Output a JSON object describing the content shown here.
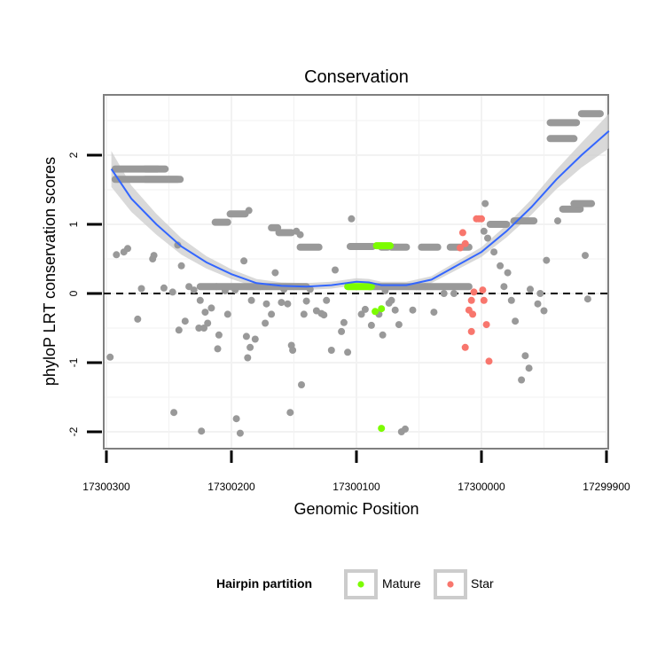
{
  "chart_data": {
    "type": "scatter",
    "title": "Conservation",
    "xlabel": "Genomic Position",
    "ylabel": "phyloP LRT conservation scores",
    "x_reversed": true,
    "xlim": [
      17300300,
      17299900
    ],
    "ylim": [
      -2.2,
      2.8
    ],
    "x_ticks": [
      17300300,
      17300200,
      17300100,
      17300000,
      17299900
    ],
    "x_tick_labels": [
      "17300300",
      "17300200",
      "17300100",
      "17300000",
      "17299900"
    ],
    "y_ticks": [
      2,
      1,
      0,
      -1,
      -2
    ],
    "y_tick_labels": [
      "2",
      "1",
      "0",
      "-1",
      "-2"
    ],
    "reference_line": {
      "y": 0,
      "style": "dashed"
    },
    "legend": {
      "title": "Hairpin partition",
      "placement": "bottom",
      "entries": [
        {
          "label": "Mature",
          "color": "#7cfc00"
        },
        {
          "label": "Star",
          "color": "#f8766d"
        }
      ]
    },
    "colors": {
      "background": "#ffffff",
      "other": "#999999",
      "smooth": "#3366ff",
      "band": "#cccccc",
      "grid": "#f2f2f2"
    },
    "series": [
      {
        "name": "Other",
        "color": "#999999",
        "segments": [
          [
            17300293,
            17300253,
            1.8
          ],
          [
            17300293,
            17300243,
            1.65
          ],
          [
            17300269,
            17300259,
            1.8
          ],
          [
            17300269,
            17300241,
            1.65
          ],
          [
            17300213,
            17300203,
            1.03
          ],
          [
            17300201,
            17300189,
            1.15
          ],
          [
            17300168,
            17300163,
            0.95
          ],
          [
            17300162,
            17300152,
            0.88
          ],
          [
            17300145,
            17300130,
            0.67
          ],
          [
            17300105,
            17300087,
            0.68
          ],
          [
            17300080,
            17300075,
            0.67
          ],
          [
            17300072,
            17300060,
            0.67
          ],
          [
            17300048,
            17300035,
            0.67
          ],
          [
            17300025,
            17300010,
            0.67
          ],
          [
            17299993,
            17299980,
            1.0
          ],
          [
            17299974,
            17299958,
            1.05
          ],
          [
            17299945,
            17299924,
            2.47
          ],
          [
            17299945,
            17299926,
            2.24
          ],
          [
            17299920,
            17299905,
            2.6
          ],
          [
            17299935,
            17299921,
            1.22
          ],
          [
            17299926,
            17299912,
            1.3
          ],
          [
            17300225,
            17300140,
            0.1
          ],
          [
            17300090,
            17300010,
            0.1
          ]
        ],
        "points": [
          [
            17300297,
            -0.92
          ],
          [
            17300292,
            0.56
          ],
          [
            17300286,
            0.6
          ],
          [
            17300283,
            0.65
          ],
          [
            17300275,
            -0.37
          ],
          [
            17300272,
            0.07
          ],
          [
            17300263,
            0.5
          ],
          [
            17300262,
            0.55
          ],
          [
            17300254,
            0.08
          ],
          [
            17300247,
            0.02
          ],
          [
            17300246,
            -1.72
          ],
          [
            17300243,
            0.7
          ],
          [
            17300242,
            -0.53
          ],
          [
            17300240,
            0.4
          ],
          [
            17300237,
            -0.4
          ],
          [
            17300234,
            0.1
          ],
          [
            17300230,
            0.05
          ],
          [
            17300226,
            -0.5
          ],
          [
            17300225,
            -0.1
          ],
          [
            17300224,
            -1.99
          ],
          [
            17300222,
            -0.5
          ],
          [
            17300221,
            -0.27
          ],
          [
            17300219,
            -0.43
          ],
          [
            17300216,
            -0.21
          ],
          [
            17300212,
            0.1
          ],
          [
            17300211,
            -0.8
          ],
          [
            17300210,
            -0.6
          ],
          [
            17300205,
            0.04
          ],
          [
            17300203,
            -0.3
          ],
          [
            17300197,
            0.05
          ],
          [
            17300196,
            -1.81
          ],
          [
            17300193,
            -2.02
          ],
          [
            17300190,
            0.47
          ],
          [
            17300188,
            -0.62
          ],
          [
            17300187,
            -0.93
          ],
          [
            17300186,
            1.2
          ],
          [
            17300185,
            -0.78
          ],
          [
            17300184,
            -0.1
          ],
          [
            17300181,
            -0.66
          ],
          [
            17300177,
            0.1
          ],
          [
            17300173,
            -0.43
          ],
          [
            17300172,
            -0.15
          ],
          [
            17300168,
            -0.3
          ],
          [
            17300165,
            0.3
          ],
          [
            17300160,
            -0.13
          ],
          [
            17300158,
            0.06
          ],
          [
            17300155,
            -0.15
          ],
          [
            17300153,
            -1.72
          ],
          [
            17300152,
            -0.75
          ],
          [
            17300151,
            -0.82
          ],
          [
            17300148,
            0.9
          ],
          [
            17300145,
            0.85
          ],
          [
            17300144,
            -1.32
          ],
          [
            17300142,
            -0.3
          ],
          [
            17300140,
            -0.11
          ],
          [
            17300137,
            0.06
          ],
          [
            17300132,
            -0.25
          ],
          [
            17300128,
            -0.29
          ],
          [
            17300126,
            -0.31
          ],
          [
            17300124,
            -0.1
          ],
          [
            17300120,
            -0.82
          ],
          [
            17300117,
            0.34
          ],
          [
            17300112,
            -0.55
          ],
          [
            17300110,
            -0.42
          ],
          [
            17300107,
            -0.85
          ],
          [
            17300104,
            1.08
          ],
          [
            17300096,
            -0.3
          ],
          [
            17300093,
            -0.23
          ],
          [
            17300088,
            -0.46
          ],
          [
            17300082,
            -0.3
          ],
          [
            17300079,
            -0.6
          ],
          [
            17300077,
            0.04
          ],
          [
            17300074,
            -0.14
          ],
          [
            17300072,
            -0.1
          ],
          [
            17300069,
            -0.24
          ],
          [
            17300066,
            -0.45
          ],
          [
            17300064,
            -2.0
          ],
          [
            17300061,
            -1.96
          ],
          [
            17300055,
            -0.24
          ],
          [
            17300052,
            0.1
          ],
          [
            17300045,
            0.1
          ],
          [
            17300038,
            -0.27
          ],
          [
            17300030,
            0.0
          ],
          [
            17300022,
            0.0
          ],
          [
            17299997,
            1.3
          ],
          [
            17299998,
            0.9
          ],
          [
            17299995,
            0.8
          ],
          [
            17299990,
            0.6
          ],
          [
            17299985,
            0.4
          ],
          [
            17299982,
            0.1
          ],
          [
            17299979,
            0.3
          ],
          [
            17299976,
            -0.1
          ],
          [
            17299973,
            -0.4
          ],
          [
            17299968,
            -1.25
          ],
          [
            17299965,
            -0.9
          ],
          [
            17299962,
            -1.08
          ],
          [
            17299961,
            0.06
          ],
          [
            17299955,
            -0.15
          ],
          [
            17299953,
            0.0
          ],
          [
            17299950,
            -0.25
          ],
          [
            17299948,
            0.48
          ],
          [
            17299939,
            1.05
          ],
          [
            17299917,
            0.55
          ],
          [
            17299915,
            -0.08
          ]
        ]
      },
      {
        "name": "Mature",
        "color": "#7cfc00",
        "segments": [
          [
            17300107,
            17300088,
            0.1
          ],
          [
            17300084,
            17300073,
            0.69
          ]
        ],
        "points": [
          [
            17300085,
            -0.26
          ],
          [
            17300080,
            -0.22
          ],
          [
            17300080,
            -1.95
          ]
        ]
      },
      {
        "name": "Star",
        "color": "#f8766d",
        "points": [
          [
            17300017,
            0.66
          ],
          [
            17300015,
            0.88
          ],
          [
            17300013,
            0.72
          ],
          [
            17300010,
            -0.24
          ],
          [
            17300008,
            -0.1
          ],
          [
            17300007,
            -0.3
          ],
          [
            17300006,
            0.02
          ],
          [
            17300004,
            1.08
          ],
          [
            17300002,
            1.08
          ],
          [
            17300000,
            1.08
          ],
          [
            17299999,
            0.05
          ],
          [
            17299998,
            -0.1
          ],
          [
            17299996,
            -0.45
          ],
          [
            17299994,
            -0.98
          ],
          [
            17300013,
            -0.78
          ],
          [
            17300008,
            -0.55
          ]
        ]
      }
    ],
    "smooth": {
      "color": "#3366ff",
      "x": [
        17300296,
        17300280,
        17300260,
        17300240,
        17300220,
        17300200,
        17300180,
        17300160,
        17300140,
        17300120,
        17300100,
        17300090,
        17300080,
        17300060,
        17300040,
        17300020,
        17300000,
        17299980,
        17299960,
        17299940,
        17299920,
        17299898
      ],
      "y": [
        1.8,
        1.37,
        1.0,
        0.68,
        0.45,
        0.28,
        0.15,
        0.11,
        0.1,
        0.12,
        0.17,
        0.16,
        0.12,
        0.12,
        0.2,
        0.4,
        0.6,
        0.9,
        1.25,
        1.65,
        2.0,
        2.35
      ],
      "band": [
        0.26,
        0.19,
        0.15,
        0.12,
        0.09,
        0.07,
        0.06,
        0.05,
        0.05,
        0.05,
        0.05,
        0.05,
        0.05,
        0.05,
        0.05,
        0.06,
        0.07,
        0.09,
        0.11,
        0.14,
        0.18,
        0.25
      ]
    }
  }
}
